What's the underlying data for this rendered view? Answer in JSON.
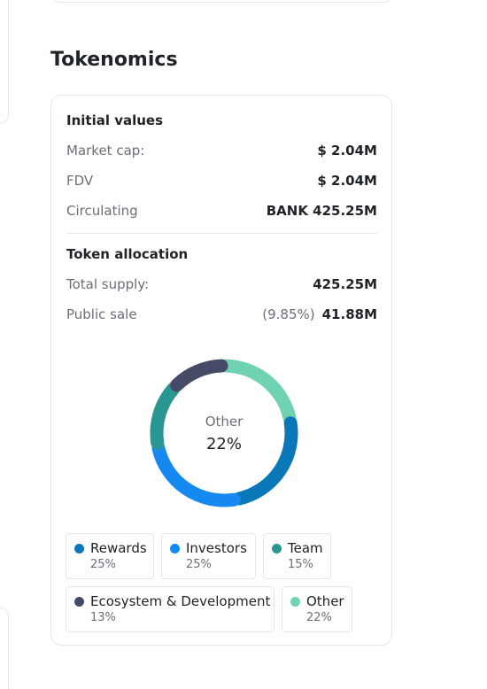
{
  "tokenomics": {
    "title": "Tokenomics",
    "initial_values": {
      "title": "Initial values",
      "rows": [
        {
          "label": "Market cap:",
          "value": "$ 2.04M"
        },
        {
          "label": "FDV",
          "value": "$ 2.04M"
        },
        {
          "label": "Circulating",
          "value": "BANK 425.25M"
        }
      ]
    },
    "token_allocation": {
      "title": "Token allocation",
      "total_supply": {
        "label": "Total supply:",
        "value": "425.25M"
      },
      "public_sale": {
        "label": "Public sale",
        "percent": "(9.85%)",
        "value": "41.88M"
      }
    },
    "donut_center": {
      "label": "Other",
      "value": "22%"
    },
    "legend": [
      {
        "name": "Rewards",
        "pct": "25%",
        "color": "#0a78b8"
      },
      {
        "name": "Investors",
        "pct": "25%",
        "color": "#1589f0"
      },
      {
        "name": "Team",
        "pct": "15%",
        "color": "#2a9691"
      },
      {
        "name": "Ecosystem & Development",
        "pct": "13%",
        "color": "#454a66"
      },
      {
        "name": "Other",
        "pct": "22%",
        "color": "#6fd3b3"
      }
    ]
  },
  "chart_data": {
    "type": "pie",
    "categories": [
      "Other",
      "Rewards",
      "Investors",
      "Team",
      "Ecosystem & Development"
    ],
    "values": [
      22,
      25,
      25,
      15,
      13
    ],
    "colors": [
      "#6fd3b3",
      "#0a78b8",
      "#1589f0",
      "#2a9691",
      "#454a66"
    ],
    "donut": true
  }
}
